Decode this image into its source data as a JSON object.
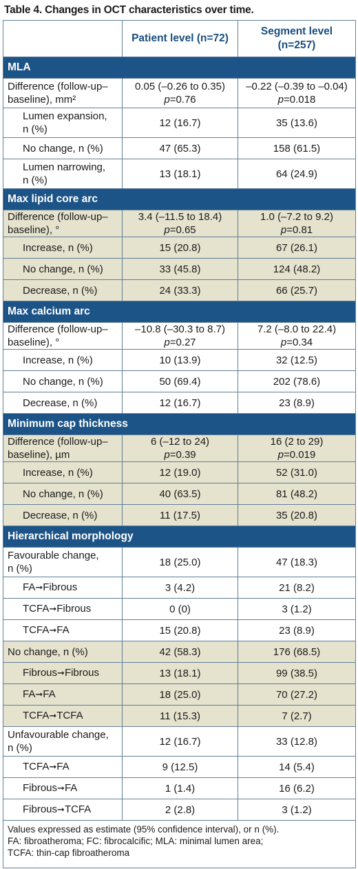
{
  "caption": "Table 4. Changes in OCT characteristics over time.",
  "header": {
    "col1": "",
    "col2": "Patient level (n=72)",
    "col3_line1": "Segment level",
    "col3_line2": "(n=257)"
  },
  "sections": [
    {
      "title": "MLA",
      "rows": [
        {
          "indent": false,
          "shade": "w",
          "size": "h2",
          "label1": "Difference (follow-up–",
          "label2": "baseline), mm²",
          "patient1": "0.05 (–0.26 to 0.35)",
          "patient_p": "=0.76",
          "segment1": "–0.22 (–0.39 to –0.04)",
          "segment_p": "=0.018"
        },
        {
          "indent": true,
          "shade": "w",
          "size": "h2",
          "label1": "Lumen expansion,",
          "label2": "n (%)",
          "patient": "12 (16.7)",
          "segment": "35 (13.6)"
        },
        {
          "indent": true,
          "shade": "w",
          "size": "h1",
          "label1": "No change, n (%)",
          "patient": "47 (65.3)",
          "segment": "158 (61.5)"
        },
        {
          "indent": true,
          "shade": "w",
          "size": "h2",
          "label1": "Lumen narrowing,",
          "label2": "n (%)",
          "patient": "13 (18.1)",
          "segment": "64 (24.9)"
        }
      ]
    },
    {
      "title": "Max lipid core arc",
      "rows": [
        {
          "indent": false,
          "shade": "b",
          "size": "h2s",
          "label1": "Difference (follow-up–",
          "label2": "baseline), °",
          "patient1": "3.4 (–11.5 to 18.4)",
          "patient_p": "=0.65",
          "segment1": "1.0 (–7.2 to 9.2)",
          "segment_p": "=0.81"
        },
        {
          "indent": true,
          "shade": "b",
          "size": "h1",
          "label1": "Increase, n (%)",
          "patient": "15 (20.8)",
          "segment": "67 (26.1)"
        },
        {
          "indent": true,
          "shade": "b",
          "size": "h1",
          "label1": "No change, n (%)",
          "patient": "33 (45.8)",
          "segment": "124 (48.2)"
        },
        {
          "indent": true,
          "shade": "b",
          "size": "h1",
          "label1": "Decrease, n (%)",
          "patient": "24 (33.3)",
          "segment": "66 (25.7)"
        }
      ]
    },
    {
      "title": "Max calcium arc",
      "rows": [
        {
          "indent": false,
          "shade": "w",
          "size": "h2s",
          "label1": "Difference (follow-up–",
          "label2": "baseline), °",
          "patient1": "–10.8 (–30.3 to 8.7)",
          "patient_p": "=0.27",
          "segment1": "7.2 (–8.0 to 22.4)",
          "segment_p": "=0.34"
        },
        {
          "indent": true,
          "shade": "w",
          "size": "h1",
          "label1": "Increase, n (%)",
          "patient": "10 (13.9)",
          "segment": "32 (12.5)"
        },
        {
          "indent": true,
          "shade": "w",
          "size": "h1",
          "label1": "No change, n (%)",
          "patient": "50 (69.4)",
          "segment": "202 (78.6)"
        },
        {
          "indent": true,
          "shade": "w",
          "size": "h1",
          "label1": "Decrease, n (%)",
          "patient": "12 (16.7)",
          "segment": "23 (8.9)"
        }
      ]
    },
    {
      "title": "Minimum cap thickness",
      "rows": [
        {
          "indent": false,
          "shade": "b",
          "size": "h2s",
          "label1": "Difference (follow-up–",
          "label2": "baseline), µm",
          "patient1": "6 (–12 to 24)",
          "patient_p": "=0.39",
          "segment1": "16 (2 to 29)",
          "segment_p": "=0.019"
        },
        {
          "indent": true,
          "shade": "b",
          "size": "h1",
          "label1": "Increase, n (%)",
          "patient": "12 (19.0)",
          "segment": "52 (31.0)"
        },
        {
          "indent": true,
          "shade": "b",
          "size": "h1",
          "label1": "No change, n (%)",
          "patient": "40 (63.5)",
          "segment": "81 (48.2)"
        },
        {
          "indent": true,
          "shade": "b",
          "size": "h1",
          "label1": "Decrease, n (%)",
          "patient": "11 (17.5)",
          "segment": "35 (20.8)"
        }
      ]
    },
    {
      "title": "Hierarchical morphology",
      "rows": [
        {
          "indent": false,
          "shade": "w",
          "size": "h2",
          "label1": "Favourable change,",
          "label2": "n (%)",
          "patient": "18 (25.0)",
          "segment": "47 (18.3)"
        },
        {
          "indent": true,
          "shade": "w",
          "size": "h1",
          "from": "FA",
          "to": "Fibrous",
          "patient": "3 (4.2)",
          "segment": "21 (8.2)"
        },
        {
          "indent": true,
          "shade": "w",
          "size": "h1",
          "from": "TCFA",
          "to": "Fibrous",
          "patient": "0 (0)",
          "segment": "3 (1.2)"
        },
        {
          "indent": true,
          "shade": "w",
          "size": "h1",
          "from": "TCFA",
          "to": "FA",
          "patient": "15 (20.8)",
          "segment": "23 (8.9)"
        },
        {
          "indent": false,
          "shade": "b",
          "size": "h1",
          "label1": "No change, n (%)",
          "patient": "42 (58.3)",
          "segment": "176 (68.5)"
        },
        {
          "indent": true,
          "shade": "b",
          "size": "h1",
          "from": "Fibrous",
          "to": "Fibrous",
          "patient": "13 (18.1)",
          "segment": "99 (38.5)"
        },
        {
          "indent": true,
          "shade": "b",
          "size": "h1",
          "from": "FA",
          "to": "FA",
          "patient": "18 (25.0)",
          "segment": "70 (27.2)"
        },
        {
          "indent": true,
          "shade": "b",
          "size": "h1",
          "from": "TCFA",
          "to": "TCFA",
          "patient": "11 (15.3)",
          "segment": "7 (2.7)"
        },
        {
          "indent": false,
          "shade": "w",
          "size": "h2",
          "label1": "Unfavourable change,",
          "label2": "n (%)",
          "patient": "12 (16.7)",
          "segment": "33 (12.8)"
        },
        {
          "indent": true,
          "shade": "w",
          "size": "h1",
          "from": "TCFA",
          "to": "FA",
          "patient": "9 (12.5)",
          "segment": "14 (5.4)"
        },
        {
          "indent": true,
          "shade": "w",
          "size": "h1",
          "from": "Fibrous",
          "to": "FA",
          "patient": "1 (1.4)",
          "segment": "16 (6.2)"
        },
        {
          "indent": true,
          "shade": "w",
          "size": "h1",
          "from": "Fibrous",
          "to": "TCFA",
          "patient": "2 (2.8)",
          "segment": "3 (1.2)"
        }
      ]
    }
  ],
  "footnote": {
    "line1": "Values expressed as estimate (95% confidence interval), or n (%).",
    "line2": "FA: fibroatheroma; FC: fibrocalcific; MLA: minimal lumen area;",
    "line3": "TCFA: thin-cap fibroatheroma"
  },
  "p_symbol": "p",
  "arrow_glyph": "➞"
}
